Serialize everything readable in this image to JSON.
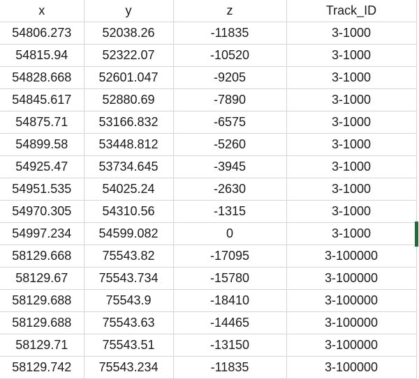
{
  "sheet": {
    "columns": [
      "x",
      "y",
      "z",
      "Track_ID"
    ],
    "rows": [
      [
        "54806.273",
        "52038.26",
        "-11835",
        "3-1000"
      ],
      [
        "54815.94",
        "52322.07",
        "-10520",
        "3-1000"
      ],
      [
        "54828.668",
        "52601.047",
        "-9205",
        "3-1000"
      ],
      [
        "54845.617",
        "52880.69",
        "-7890",
        "3-1000"
      ],
      [
        "54875.71",
        "53166.832",
        "-6575",
        "3-1000"
      ],
      [
        "54899.58",
        "53448.812",
        "-5260",
        "3-1000"
      ],
      [
        "54925.47",
        "53734.645",
        "-3945",
        "3-1000"
      ],
      [
        "54951.535",
        "54025.24",
        "-2630",
        "3-1000"
      ],
      [
        "54970.305",
        "54310.56",
        "-1315",
        "3-1000"
      ],
      [
        "54997.234",
        "54599.082",
        "0",
        "3-1000"
      ],
      [
        "58129.668",
        "75543.82",
        "-17095",
        "3-100000"
      ],
      [
        "58129.67",
        "75543.734",
        "-15780",
        "3-100000"
      ],
      [
        "58129.688",
        "75543.9",
        "-18410",
        "3-100000"
      ],
      [
        "58129.688",
        "75543.63",
        "-14465",
        "3-100000"
      ],
      [
        "58129.71",
        "75543.51",
        "-13150",
        "3-100000"
      ],
      [
        "58129.742",
        "75543.234",
        "-11835",
        "3-100000"
      ]
    ]
  },
  "colors": {
    "gridline": "#d4d4d4",
    "text": "#1a1a1a",
    "selection": "#1f6b3a"
  }
}
